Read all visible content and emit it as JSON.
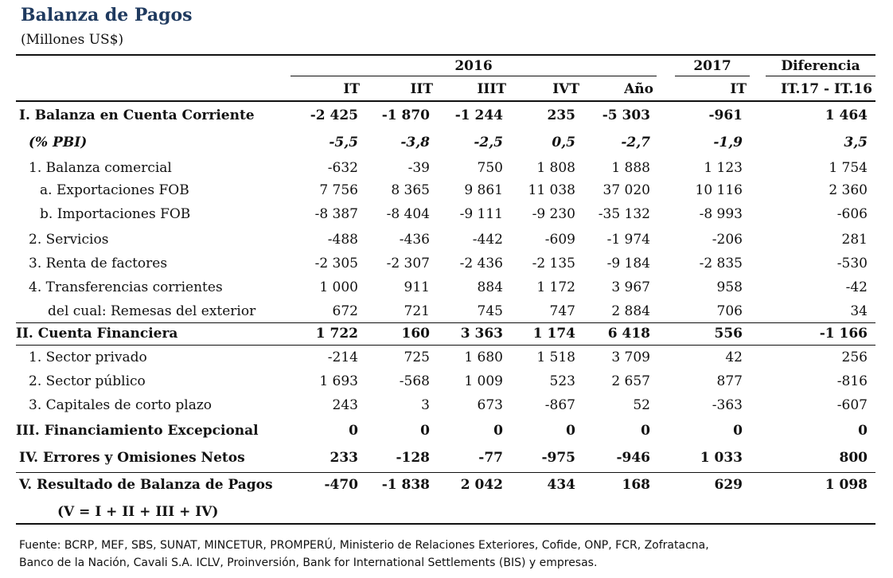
{
  "title": "Balanza de Pagos",
  "subtitle": "(Millones US$)",
  "headers": {
    "year_2016": "2016",
    "year_2017": "2017",
    "difference": "Diferencia",
    "columns": [
      "IT",
      "IIT",
      "IIIT",
      "IVT",
      "Año",
      "IT",
      "IT.17 - IT.16"
    ]
  },
  "rows": [
    {
      "label": "I. Balanza en Cuenta Corriente",
      "style": "bold",
      "values": [
        "-2 425",
        "-1 870",
        "-1 244",
        "235",
        "-5 303",
        "-961",
        "1 464"
      ]
    },
    {
      "label": "(% PBI)",
      "style": "italic",
      "values": [
        "-5,5",
        "-3,8",
        "-2,5",
        "0,5",
        "-2,7",
        "-1,9",
        "3,5"
      ]
    },
    {
      "label": "1. Balanza comercial",
      "style": "normal",
      "values": [
        "-632",
        "-39",
        "750",
        "1 808",
        "1 888",
        "1 123",
        "1 754"
      ]
    },
    {
      "label": "a. Exportaciones FOB",
      "style": "normal",
      "values": [
        "7 756",
        "8 365",
        "9 861",
        "11 038",
        "37 020",
        "10 116",
        "2 360"
      ]
    },
    {
      "label": "b. Importaciones FOB",
      "style": "normal",
      "values": [
        "-8 387",
        "-8 404",
        "-9 111",
        "-9 230",
        "-35 132",
        "-8 993",
        "-606"
      ]
    },
    {
      "label": "2. Servicios",
      "style": "normal",
      "values": [
        "-488",
        "-436",
        "-442",
        "-609",
        "-1 974",
        "-206",
        "281"
      ]
    },
    {
      "label": "3. Renta de factores",
      "style": "normal",
      "values": [
        "-2 305",
        "-2 307",
        "-2 436",
        "-2 135",
        "-9 184",
        "-2 835",
        "-530"
      ]
    },
    {
      "label": "4. Transferencias corrientes",
      "style": "normal",
      "values": [
        "1 000",
        "911",
        "884",
        "1 172",
        "3 967",
        "958",
        "-42"
      ]
    },
    {
      "label": "del cual: Remesas del exterior",
      "style": "normal",
      "values": [
        "672",
        "721",
        "745",
        "747",
        "2 884",
        "706",
        "34"
      ]
    },
    {
      "label": "II. Cuenta Financiera",
      "style": "bold",
      "values": [
        "1 722",
        "160",
        "3 363",
        "1 174",
        "6 418",
        "556",
        "-1 166"
      ]
    },
    {
      "label": "1. Sector privado",
      "style": "normal",
      "values": [
        "-214",
        "725",
        "1 680",
        "1 518",
        "3 709",
        "42",
        "256"
      ]
    },
    {
      "label": "2. Sector público",
      "style": "normal",
      "values": [
        "1 693",
        "-568",
        "1 009",
        "523",
        "2 657",
        "877",
        "-816"
      ]
    },
    {
      "label": "3. Capitales de corto plazo",
      "style": "normal",
      "values": [
        "243",
        "3",
        "673",
        "-867",
        "52",
        "-363",
        "-607"
      ]
    },
    {
      "label": "III. Financiamiento Excepcional",
      "style": "bold",
      "values": [
        "0",
        "0",
        "0",
        "0",
        "0",
        "0",
        "0"
      ]
    },
    {
      "label": "IV. Errores y Omisiones Netos",
      "style": "bold",
      "values": [
        "233",
        "-128",
        "-77",
        "-975",
        "-946",
        "1 033",
        "800"
      ]
    },
    {
      "label": "V. Resultado de Balanza de Pagos",
      "style": "bold",
      "values": [
        "-470",
        "-1 838",
        "2 042",
        "434",
        "168",
        "629",
        "1 098"
      ]
    }
  ],
  "formula": "(V = I + II + III + IV)",
  "source_lines": [
    "Fuente: BCRP, MEF, SBS, SUNAT, MINCETUR, PROMPERÚ, Ministerio de Relaciones  Exteriores, Cofide, ONP, FCR, Zofratacna,",
    "Banco de la Nación, Cavali S.A. ICLV,  Proinversión, Bank for International Settlements (BIS) y empresas."
  ]
}
